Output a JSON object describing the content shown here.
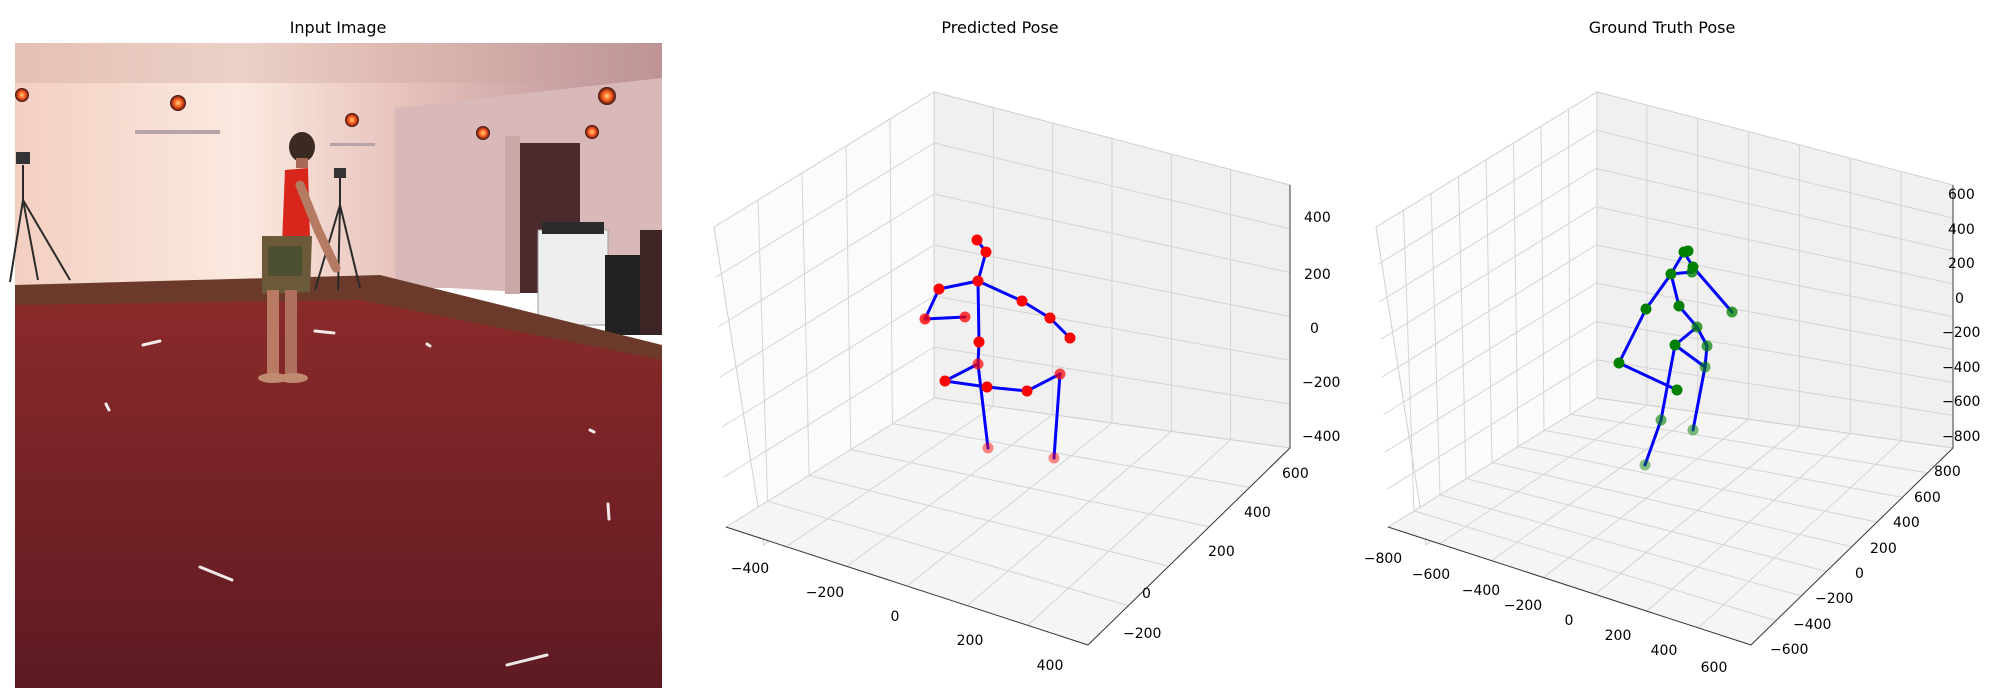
{
  "figure": {
    "panel1_title": "Input Image",
    "panel2_title": "Predicted Pose",
    "panel3_title": "Ground Truth Pose"
  },
  "colors": {
    "bone": "#0000ff",
    "predicted_joint": "#ff0000",
    "ground_truth_joint": "#008000",
    "pane": "#f2f2f2",
    "grid": "#d3d3d3"
  },
  "chart_data": [
    {
      "type": "scatter3d",
      "title": "Predicted Pose",
      "x_ticks": [
        "−400",
        "−200",
        "0",
        "200",
        "400"
      ],
      "y_ticks": [
        "−200",
        "0",
        "200",
        "400",
        "600"
      ],
      "z_ticks": [
        "−400",
        "−200",
        "0",
        "200",
        "400"
      ],
      "grid": true,
      "joint_color": "#ff0000",
      "bone_color": "#0000ff"
    },
    {
      "type": "scatter3d",
      "title": "Ground Truth Pose",
      "x_ticks": [
        "−800",
        "−600",
        "−400",
        "−200",
        "0",
        "200",
        "400",
        "600"
      ],
      "y_ticks": [
        "−600",
        "−400",
        "−200",
        "0",
        "200",
        "400",
        "600",
        "800"
      ],
      "z_ticks": [
        "−800",
        "−600",
        "−400",
        "−200",
        "0",
        "200",
        "400",
        "600"
      ],
      "grid": true,
      "joint_color": "#008000",
      "bone_color": "#0000ff"
    }
  ]
}
